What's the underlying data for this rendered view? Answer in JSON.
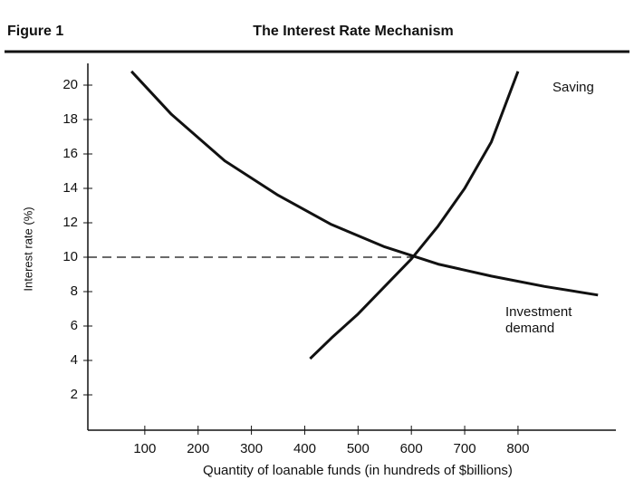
{
  "chart_data": {
    "type": "line",
    "figure_label": "Figure 1",
    "title": "The Interest Rate Mechanism",
    "x_label": "Quantity of loanable funds (in hundreds of $billions)",
    "y_label": "Interest rate (%)",
    "xlim": [
      0,
      970
    ],
    "ylim": [
      0,
      21
    ],
    "xticks": [
      100,
      200,
      300,
      400,
      500,
      600,
      700,
      800
    ],
    "yticks": [
      2,
      4,
      6,
      8,
      10,
      12,
      14,
      16,
      18,
      20
    ],
    "series": [
      {
        "name": "Saving",
        "color": "#111111",
        "x": [
          410,
          450,
          500,
          550,
          600,
          650,
          700,
          750,
          800
        ],
        "values": [
          4.1,
          5.3,
          6.7,
          8.3,
          9.9,
          11.8,
          14.0,
          16.7,
          20.8
        ]
      },
      {
        "name": "Investment demand",
        "color": "#111111",
        "x": [
          75,
          150,
          250,
          350,
          450,
          550,
          650,
          750,
          850,
          950
        ],
        "values": [
          20.8,
          18.3,
          15.6,
          13.6,
          11.9,
          10.6,
          9.6,
          8.9,
          8.3,
          7.8
        ]
      }
    ],
    "reference_line": {
      "y": 10,
      "x_end": 600
    }
  }
}
